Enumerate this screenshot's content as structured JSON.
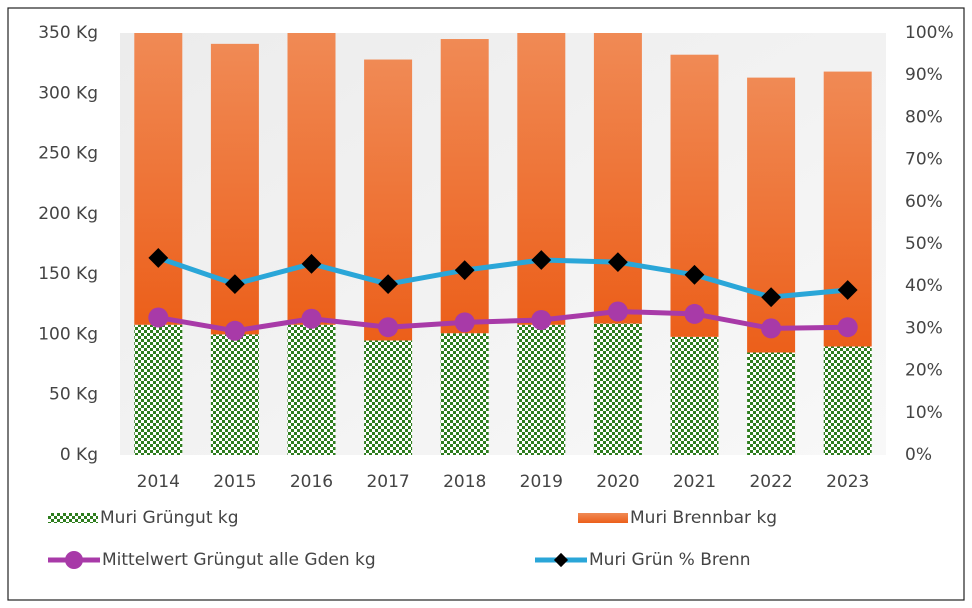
{
  "chart_data": {
    "type": "bar",
    "categories": [
      "2014",
      "2015",
      "2016",
      "2017",
      "2018",
      "2019",
      "2020",
      "2021",
      "2022",
      "2023"
    ],
    "series": [
      {
        "name": "Muri Grüngut kg",
        "kind": "stacked-bar",
        "color": "#2e7d1e",
        "values": [
          108,
          100,
          108,
          95,
          101,
          108,
          109,
          98,
          85,
          90
        ]
      },
      {
        "name": "Muri Brennbar kg",
        "kind": "stacked-bar",
        "color": "#ee6a2a",
        "values": [
          242,
          241,
          242,
          233,
          244,
          242,
          241,
          234,
          228,
          228
        ]
      },
      {
        "name": "Mittelwert Grüngut  alle Gden kg",
        "kind": "line",
        "color": "#a83aa8",
        "marker": "circle",
        "values": [
          114,
          103,
          113,
          106,
          110,
          112,
          119,
          117,
          105,
          106
        ]
      },
      {
        "name": "Muri Grün % Brenn",
        "kind": "line",
        "axis": "y2",
        "color": "#2aa6d8",
        "marker": "diamond",
        "values": [
          46.7,
          40.5,
          45.3,
          40.5,
          43.8,
          46.2,
          45.7,
          42.7,
          37.4,
          39.1
        ]
      }
    ],
    "ylim": [
      0,
      350
    ],
    "yticks": [
      {
        "value": 0,
        "label": "0 Kg"
      },
      {
        "value": 50,
        "label": "50 Kg"
      },
      {
        "value": 100,
        "label": "100 Kg"
      },
      {
        "value": 150,
        "label": "150 Kg"
      },
      {
        "value": 200,
        "label": "200 Kg"
      },
      {
        "value": 250,
        "label": "250 Kg"
      },
      {
        "value": 300,
        "label": "300 Kg"
      },
      {
        "value": 350,
        "label": "350 Kg"
      }
    ],
    "y2lim": [
      0,
      100
    ],
    "y2ticks": [
      {
        "value": 0,
        "label": "0%"
      },
      {
        "value": 10,
        "label": "10%"
      },
      {
        "value": 20,
        "label": "20%"
      },
      {
        "value": 30,
        "label": "30%"
      },
      {
        "value": 40,
        "label": "40%"
      },
      {
        "value": 50,
        "label": "50%"
      },
      {
        "value": 60,
        "label": "60%"
      },
      {
        "value": 70,
        "label": "70%"
      },
      {
        "value": 80,
        "label": "80%"
      },
      {
        "value": 90,
        "label": "90%"
      },
      {
        "value": 100,
        "label": "100%"
      }
    ],
    "legend": "bottom"
  }
}
